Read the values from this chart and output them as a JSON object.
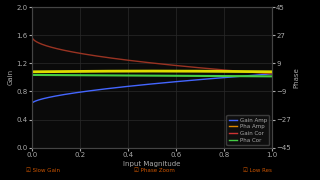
{
  "title": "",
  "xlabel": "Input Magnitude",
  "ylabel_left": "Gain",
  "ylabel_right": "Phase",
  "bg_color": "#000000",
  "plot_bg_color": "#0a0a0a",
  "grid_color": "#2a2a2a",
  "text_color": "#aaaaaa",
  "tick_color": "#888888",
  "ylim_left": [
    0,
    2.0
  ],
  "ylim_right": [
    -45,
    45
  ],
  "xlim": [
    0,
    1
  ],
  "yticks_left": [
    0,
    0.4,
    0.8,
    1.2,
    1.6,
    2.0
  ],
  "yticks_right": [
    -45,
    -27,
    -9,
    9,
    27,
    45
  ],
  "xticks": [
    0,
    0.2,
    0.4,
    0.6,
    0.8,
    1.0
  ],
  "lines": {
    "gain_amp": {
      "color": "#4466ff",
      "label": "Gain Amp",
      "lw": 1.0
    },
    "pha_amp": {
      "color": "#44aa44",
      "label": "Pha Amp",
      "lw": 1.0
    },
    "gain_cor": {
      "color": "#cc3333",
      "label": "Gain Cor",
      "lw": 1.0
    },
    "pha_cor": {
      "color": "#aacc00",
      "label": "Pha Cor",
      "lw": 1.0
    }
  },
  "legend_labels": [
    "Gain Amp",
    "Pha Amp",
    "Gain Cor",
    "Pha Cor"
  ],
  "legend_colors": [
    "#4466ff",
    "#dd8800",
    "#cc3333",
    "#44cc44"
  ],
  "bottom_checkboxes": [
    "Slow Gain",
    "Phase Zoom",
    "Low Res"
  ],
  "checkbox_color": "#cc5500"
}
